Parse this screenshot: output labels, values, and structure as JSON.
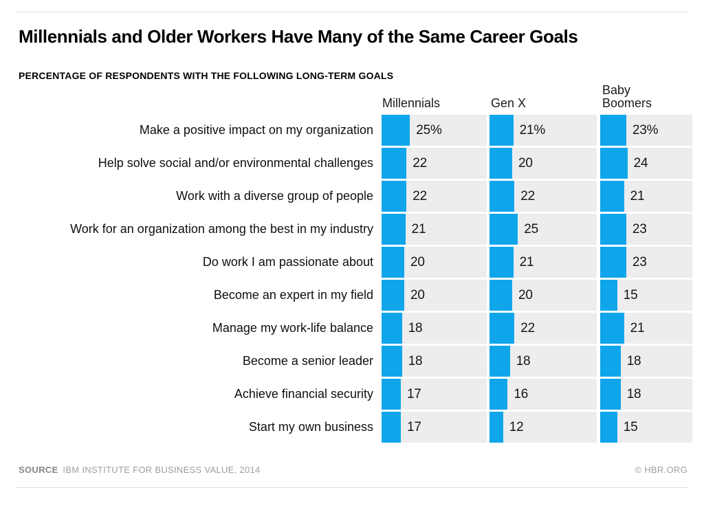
{
  "header": {
    "title": "Millennials and Older Workers Have Many of the Same Career Goals",
    "subtitle": "PERCENTAGE OF RESPONDENTS WITH THE FOLLOWING LONG-TERM GOALS"
  },
  "chart_data": {
    "type": "bar",
    "orientation": "horizontal",
    "title": "Millennials and Older Workers Have Many of the Same Career Goals",
    "subtitle": "PERCENTAGE OF RESPONDENTS WITH THE FOLLOWING LONG-TERM GOALS",
    "unit": "%",
    "first_row_value_suffix": "%",
    "categories": [
      "Make a positive impact on my organization",
      "Help solve social and/or environmental challenges",
      "Work with a diverse group of people",
      "Work for an organization among the best in my industry",
      "Do work I am passionate about",
      "Become an expert in my field",
      "Manage my work-life balance",
      "Become a senior leader",
      "Achieve financial security",
      "Start my own business"
    ],
    "series": [
      {
        "name": "Millennials",
        "values": [
          25,
          22,
          22,
          21,
          20,
          20,
          18,
          18,
          17,
          17
        ]
      },
      {
        "name": "Gen X",
        "values": [
          21,
          20,
          22,
          25,
          21,
          20,
          22,
          18,
          16,
          12
        ]
      },
      {
        "name": "Baby Boomers",
        "values": [
          23,
          24,
          21,
          23,
          23,
          15,
          21,
          18,
          18,
          15
        ]
      }
    ],
    "legend_position": "column-headers",
    "grid": false,
    "colors": {
      "bar": "#0FA5EB",
      "track": "#EDEDED"
    }
  },
  "footer": {
    "source_label": "SOURCE",
    "source_text": "IBM INSTITUTE FOR BUSINESS VALUE, 2014",
    "copyright": "© HBR.ORG"
  }
}
